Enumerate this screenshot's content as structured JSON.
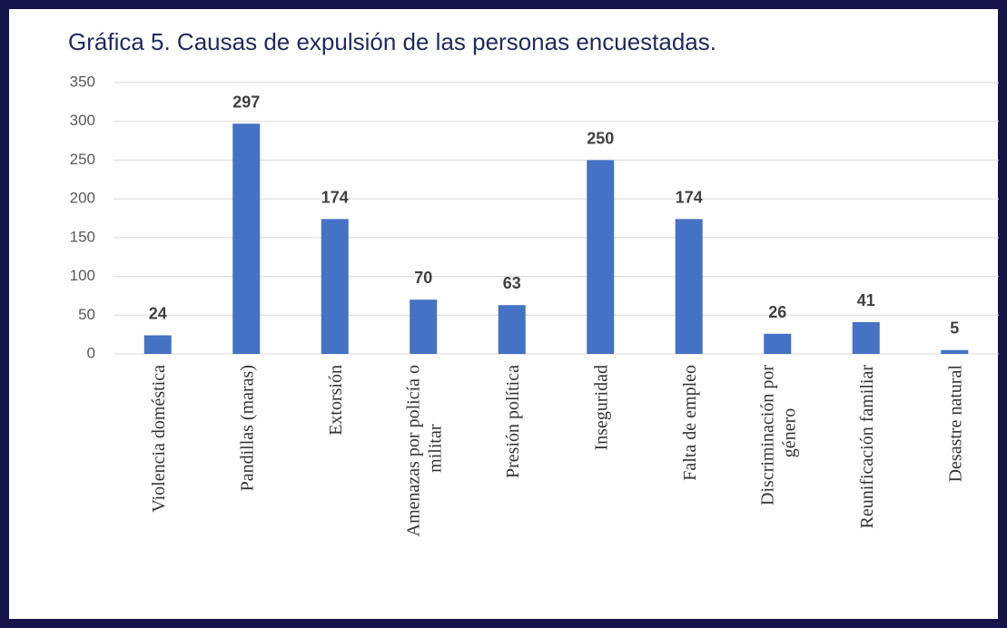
{
  "chart_data": {
    "type": "bar",
    "title": "Gráfica 5. Causas de expulsión de las personas encuestadas.",
    "categories": [
      "Violencia doméstica",
      "Pandillas (maras)",
      "Extorsión",
      "Amenazas por policía o militar",
      "Presión política",
      "Inseguridad",
      "Falta de empleo",
      "Discriminación por género",
      "Reunificación familiar",
      "Desastre natural"
    ],
    "values": [
      24,
      297,
      174,
      70,
      63,
      250,
      174,
      26,
      41,
      5
    ],
    "color": "#4472c4",
    "ylim": [
      0,
      350
    ],
    "yticks": [
      0,
      50,
      100,
      150,
      200,
      250,
      300,
      350
    ],
    "grid": true
  }
}
